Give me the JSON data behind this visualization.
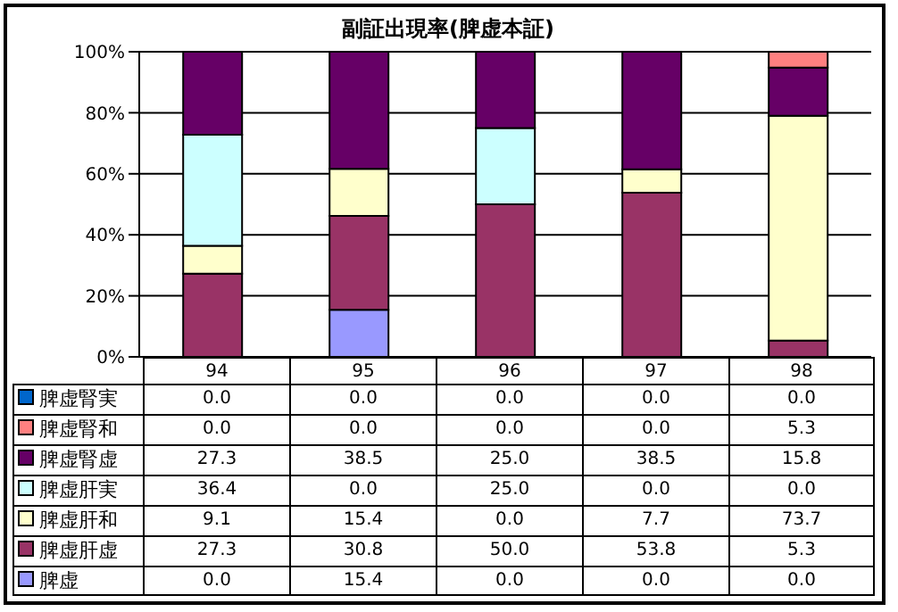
{
  "chart_data": {
    "type": "bar",
    "title": "副証出現率(脾虚本証)",
    "categories": [
      "94",
      "95",
      "96",
      "97",
      "98"
    ],
    "stacked": true,
    "ylim": [
      0,
      100
    ],
    "yticks": [
      {
        "value": 0,
        "label": "0%"
      },
      {
        "value": 20,
        "label": "20%"
      },
      {
        "value": 40,
        "label": "40%"
      },
      {
        "value": 60,
        "label": "60%"
      },
      {
        "value": 80,
        "label": "80%"
      },
      {
        "value": 100,
        "label": "100%"
      }
    ],
    "grid": "y",
    "legend": "bottom",
    "series": [
      {
        "name": "脾虚",
        "color": "#9999ff",
        "values": [
          0.0,
          15.4,
          0.0,
          0.0,
          0.0
        ],
        "value_labels": [
          "0.0",
          "15.4",
          "0.0",
          "0.0",
          "0.0"
        ]
      },
      {
        "name": "脾虚肝虚",
        "color": "#993366",
        "values": [
          27.3,
          30.8,
          50.0,
          53.8,
          5.3
        ],
        "value_labels": [
          "27.3",
          "30.8",
          "50.0",
          "53.8",
          "5.3"
        ]
      },
      {
        "name": "脾虚肝和",
        "color": "#ffffcc",
        "values": [
          9.1,
          15.4,
          0.0,
          7.7,
          73.7
        ],
        "value_labels": [
          "9.1",
          "15.4",
          "0.0",
          "7.7",
          "73.7"
        ]
      },
      {
        "name": "脾虚肝実",
        "color": "#ccffff",
        "values": [
          36.4,
          0.0,
          25.0,
          0.0,
          0.0
        ],
        "value_labels": [
          "36.4",
          "0.0",
          "25.0",
          "0.0",
          "0.0"
        ]
      },
      {
        "name": "脾虚腎虚",
        "color": "#660066",
        "values": [
          27.3,
          38.5,
          25.0,
          38.5,
          15.8
        ],
        "value_labels": [
          "27.3",
          "38.5",
          "25.0",
          "38.5",
          "15.8"
        ]
      },
      {
        "name": "脾虚腎和",
        "color": "#ff8080",
        "values": [
          0.0,
          0.0,
          0.0,
          0.0,
          5.3
        ],
        "value_labels": [
          "0.0",
          "0.0",
          "0.0",
          "0.0",
          "5.3"
        ]
      },
      {
        "name": "脾虚腎実",
        "color": "#0066cc",
        "values": [
          0.0,
          0.0,
          0.0,
          0.0,
          0.0
        ],
        "value_labels": [
          "0.0",
          "0.0",
          "0.0",
          "0.0",
          "0.0"
        ]
      }
    ]
  }
}
